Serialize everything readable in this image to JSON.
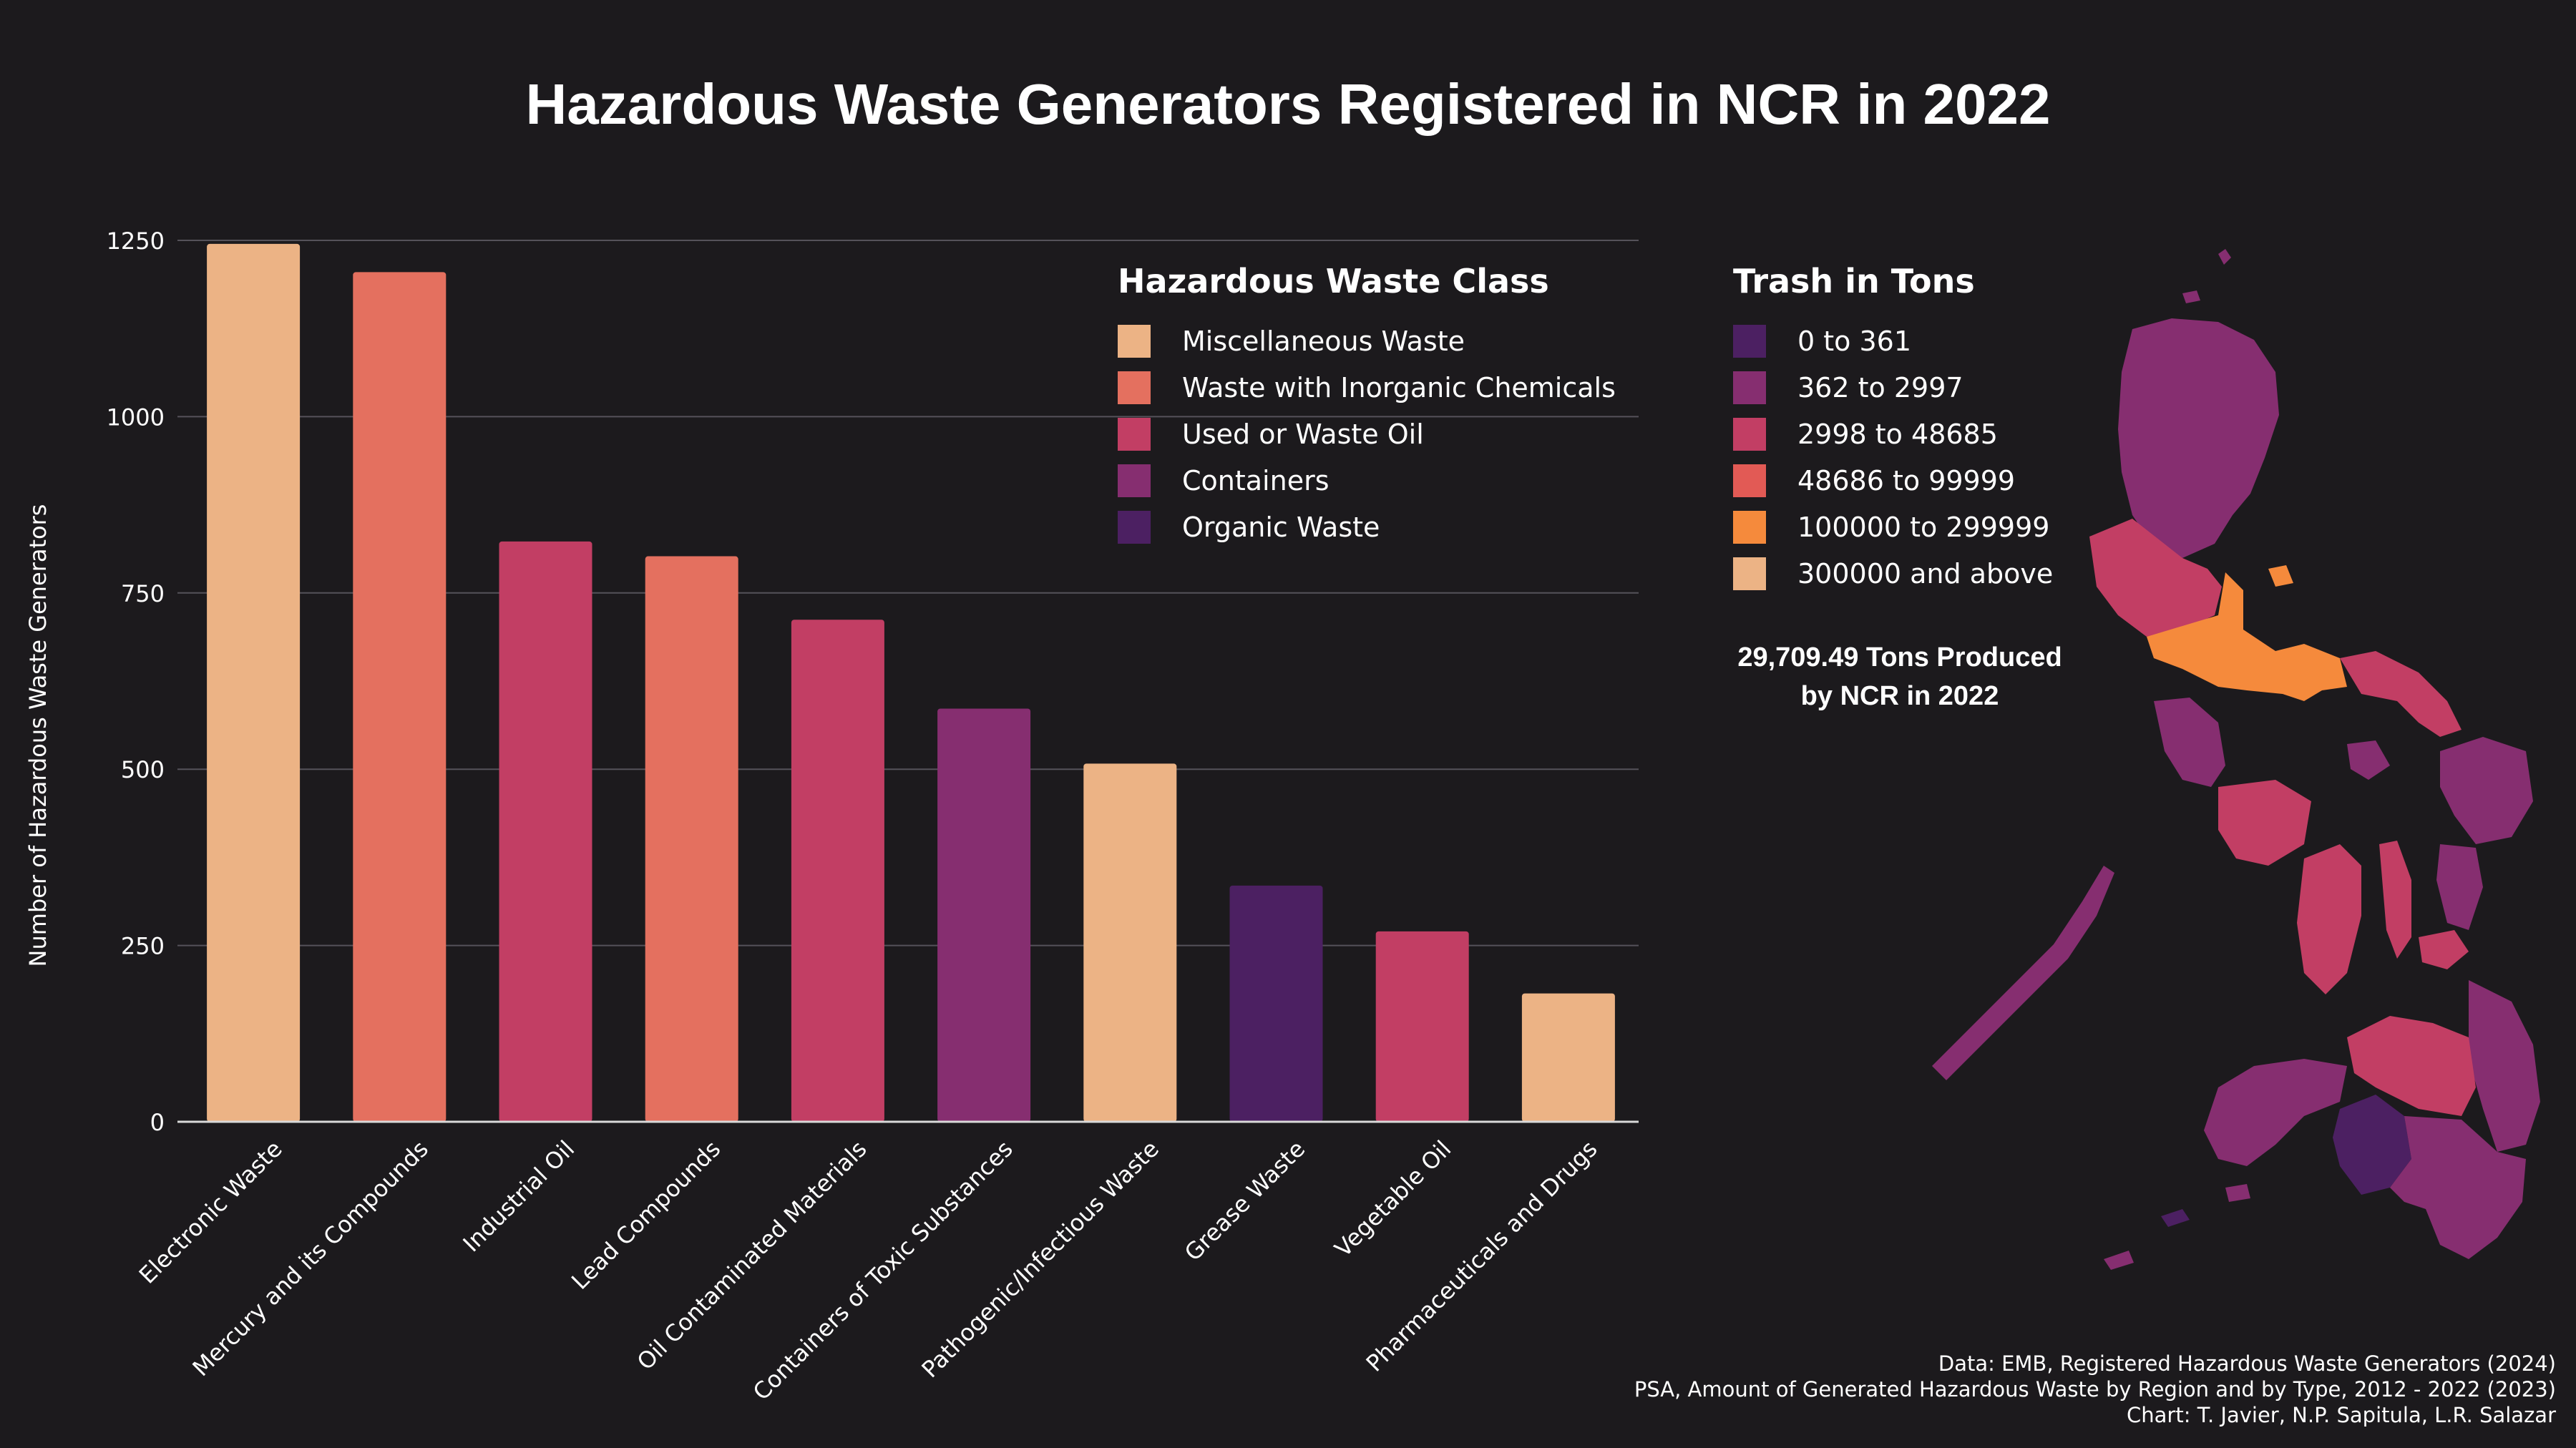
{
  "title": "Hazardous Waste Generators Registered in NCR  in 2022",
  "chart_data": {
    "type": "bar",
    "ylabel": "Number of Hazardous Waste Generators",
    "xlabel": "",
    "ylim": [
      0,
      1250
    ],
    "yticks": [
      0,
      250,
      500,
      750,
      1000,
      1250
    ],
    "grid": true,
    "categories": [
      "Electronic Waste",
      "Mercury and its Compounds",
      "Industrial Oil",
      "Lead Compounds",
      "Oil Contaminated Materials",
      "Containers of Toxic Substances",
      "Pathogenic/Infectious Waste",
      "Grease Waste",
      "Vegetable Oil",
      "Pharmaceuticals and Drugs"
    ],
    "values": [
      1245,
      1205,
      823,
      802,
      712,
      586,
      508,
      335,
      270,
      182
    ],
    "classes": [
      "Miscellaneous Waste",
      "Waste with Inorganic Chemicals",
      "Used or Waste Oil",
      "Waste with Inorganic Chemicals",
      "Used or Waste Oil",
      "Containers",
      "Miscellaneous Waste",
      "Organic Waste",
      "Used or Waste Oil",
      "Miscellaneous Waste"
    ],
    "legend_placement": "top-right"
  },
  "class_legend": {
    "title": "Hazardous Waste Class",
    "items": [
      {
        "label": "Miscellaneous Waste",
        "color": "#ecb385"
      },
      {
        "label": "Waste with Inorganic Chemicals",
        "color": "#e4705f"
      },
      {
        "label": "Used or Waste Oil",
        "color": "#c23e64"
      },
      {
        "label": "Containers",
        "color": "#862e70"
      },
      {
        "label": "Organic Waste",
        "color": "#4c2062"
      }
    ]
  },
  "tons_legend": {
    "title": "Trash in Tons",
    "items": [
      {
        "label": "0 to 361",
        "color": "#4c2062"
      },
      {
        "label": "362 to 2997",
        "color": "#862e70"
      },
      {
        "label": "2998 to 48685",
        "color": "#c23e64"
      },
      {
        "label": "48686 to 99999",
        "color": "#e25a55"
      },
      {
        "label": "100000 to 299999",
        "color": "#f58a3c"
      },
      {
        "label": "300000 and above",
        "color": "#ecb385"
      }
    ]
  },
  "ncr_note": {
    "line1": "29,709.49 Tons Produced",
    "line2": "by NCR in 2022"
  },
  "source": {
    "line1": "Data: EMB, Registered Hazardous Waste Generators (2024)",
    "line2": "PSA, Amount of Generated Hazardous Waste by Region and by Type, 2012 - 2022  (2023)",
    "line3": "Chart: T. Javier, N.P. Sapitula, L.R. Salazar"
  },
  "colors": {
    "background": "#1c1a1d",
    "gridline": "#55525a",
    "axis": "#d9d9d9",
    "text": "#ffffff"
  }
}
